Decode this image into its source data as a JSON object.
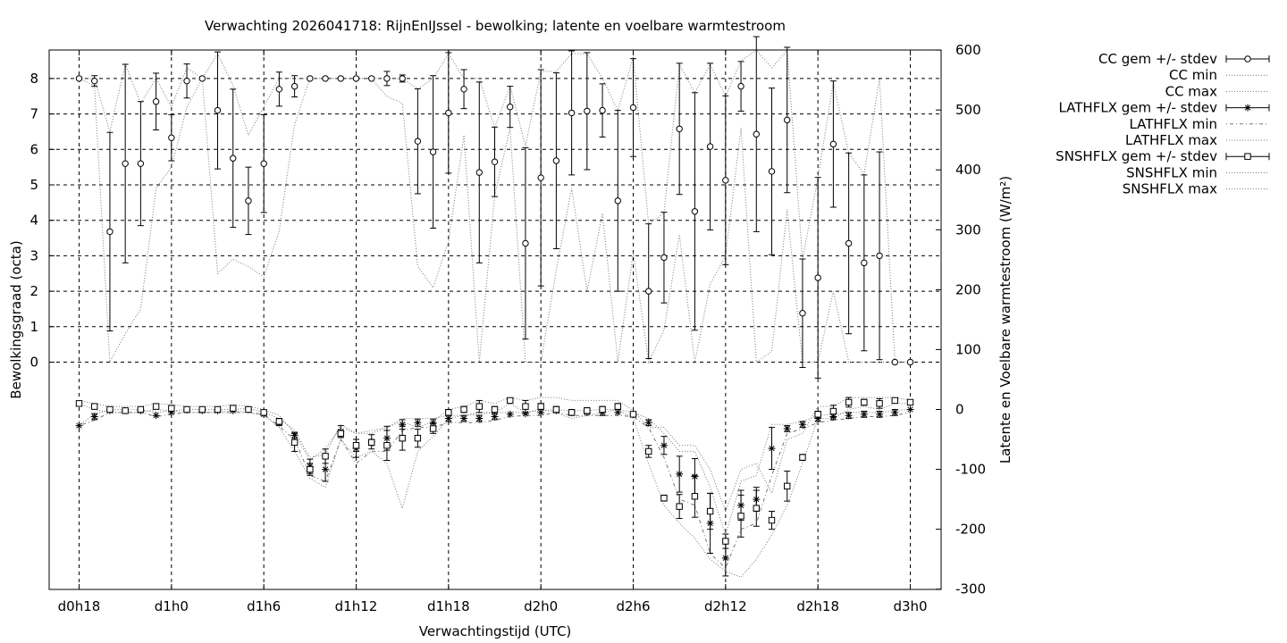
{
  "chart_data": {
    "type": "line",
    "title": "Verwachting 2026041718: RijnEnIJssel - bewolking; latente en voelbare warmtestroom",
    "xlabel": "Verwachtingstijd (UTC)",
    "ylabel": "Bewolkingsgraad (octa)",
    "y2label": "Latente en Voelbare warmtestroom (W/m²)",
    "x_tick_labels": [
      "d0h18",
      "d1h0",
      "d1h6",
      "d1h12",
      "d1h18",
      "d2h0",
      "d2h6",
      "d2h12",
      "d2h18",
      "d3h0"
    ],
    "x_tick_hours": [
      18,
      24,
      30,
      36,
      42,
      48,
      54,
      60,
      66,
      72
    ],
    "xlim": [
      16,
      74
    ],
    "y_ticks": [
      0,
      1,
      2,
      3,
      4,
      5,
      6,
      7,
      8
    ],
    "y2_ticks": [
      -300,
      -200,
      -100,
      0,
      100,
      200,
      300,
      400,
      500,
      600
    ],
    "y2lim": [
      -300,
      600
    ],
    "grid": true,
    "legend_position": "outside-right",
    "legend": [
      {
        "label": "CC gem +/- stdev",
        "style": "errorbar-circle"
      },
      {
        "label": "CC min",
        "style": "dotted"
      },
      {
        "label": "CC max",
        "style": "dotted"
      },
      {
        "label": "LATHFLX gem +/- stdev",
        "style": "errorbar-star"
      },
      {
        "label": "LATHFLX min",
        "style": "dashdot"
      },
      {
        "label": "LATHFLX max",
        "style": "dotted"
      },
      {
        "label": "SNSHFLX gem +/- stdev",
        "style": "errorbar-square"
      },
      {
        "label": "SNSHFLX min",
        "style": "dotted"
      },
      {
        "label": "SNSHFLX max",
        "style": "dotted"
      }
    ],
    "hours": [
      18,
      19,
      20,
      21,
      22,
      23,
      24,
      25,
      26,
      27,
      28,
      29,
      30,
      31,
      32,
      33,
      34,
      35,
      36,
      37,
      38,
      39,
      40,
      41,
      42,
      43,
      44,
      45,
      46,
      47,
      48,
      49,
      50,
      51,
      52,
      53,
      54,
      55,
      56,
      57,
      58,
      59,
      60,
      61,
      62,
      63,
      64,
      65,
      66,
      67,
      68,
      69,
      70,
      71,
      72
    ],
    "series": [
      {
        "name": "CC gem +/- stdev",
        "axis": "left",
        "marker": "circle",
        "mean": [
          8,
          7.93,
          3.68,
          5.6,
          5.6,
          7.35,
          6.33,
          7.93,
          8,
          7.1,
          5.75,
          4.55,
          5.6,
          7.7,
          7.78,
          8,
          8,
          8,
          8,
          8,
          8,
          8,
          6.23,
          5.93,
          7.03,
          7.7,
          5.35,
          5.65,
          7.2,
          3.35,
          5.2,
          5.68,
          7.03,
          7.08,
          7.1,
          4.55,
          7.18,
          2,
          2.95,
          6.58,
          4.25,
          6.08,
          5.13,
          7.78,
          6.43,
          5.38,
          6.83,
          1.38,
          2.38,
          6.15,
          3.35,
          2.8,
          3,
          0,
          0
        ],
        "stdev": [
          0,
          0.15,
          2.8,
          2.8,
          1.75,
          0.8,
          0.65,
          0.48,
          0,
          1.65,
          1.95,
          0.95,
          1.38,
          0.48,
          0.3,
          0,
          0,
          0,
          0,
          0,
          0.2,
          0.1,
          1.48,
          2.15,
          1.7,
          0.55,
          2.55,
          0.98,
          0.58,
          2.7,
          3.05,
          2.48,
          1.75,
          1.65,
          0.75,
          2.55,
          1.38,
          1.9,
          1.28,
          1.85,
          3.35,
          2.35,
          2.38,
          0.7,
          2.75,
          2.35,
          2.05,
          1.53,
          2.83,
          1.78,
          2.55,
          2.48,
          2.93,
          0,
          0
        ]
      },
      {
        "name": "LATHFLX gem +/- stdev",
        "axis": "right",
        "marker": "star",
        "mean": [
          -27,
          -12,
          -2,
          -2,
          -2,
          -10,
          -5,
          -1,
          -2,
          -2,
          -2,
          0,
          -8,
          -22,
          -43,
          -95,
          -100,
          -37,
          -65,
          -54,
          -48,
          -25,
          -22,
          -22,
          -15,
          -15,
          -15,
          -12,
          -8,
          -7,
          -5,
          -2,
          -5,
          -5,
          -5,
          -5,
          -8,
          -22,
          -60,
          -108,
          -112,
          -190,
          -248,
          -160,
          -150,
          -65,
          -32,
          -25,
          -15,
          -12,
          -10,
          -8,
          -8,
          -5,
          0
        ],
        "stdev": [
          0,
          5,
          0,
          0,
          0,
          0,
          0,
          0,
          0,
          0,
          0,
          0,
          0,
          5,
          5,
          12,
          20,
          10,
          15,
          12,
          20,
          8,
          6,
          6,
          5,
          5,
          5,
          5,
          0,
          0,
          0,
          0,
          0,
          0,
          5,
          0,
          0,
          5,
          15,
          30,
          30,
          50,
          30,
          25,
          20,
          35,
          5,
          5,
          5,
          5,
          5,
          5,
          5,
          5,
          0
        ]
      },
      {
        "name": "SNSHFLX gem +/- stdev",
        "axis": "right",
        "marker": "square",
        "mean": [
          10,
          5,
          0,
          -2,
          0,
          5,
          2,
          0,
          0,
          0,
          2,
          0,
          -5,
          -20,
          -55,
          -100,
          -78,
          -40,
          -60,
          -55,
          -60,
          -48,
          -48,
          -32,
          -5,
          0,
          5,
          0,
          15,
          5,
          5,
          0,
          -5,
          -2,
          0,
          5,
          -8,
          -70,
          -148,
          -162,
          -145,
          -170,
          -220,
          -178,
          -165,
          -185,
          -128,
          -80,
          -8,
          -3,
          12,
          12,
          10,
          15,
          12
        ],
        "stdev": [
          0,
          0,
          0,
          0,
          0,
          0,
          0,
          0,
          0,
          0,
          0,
          0,
          0,
          5,
          15,
          10,
          12,
          5,
          10,
          5,
          25,
          20,
          15,
          8,
          5,
          5,
          10,
          5,
          0,
          10,
          5,
          5,
          5,
          5,
          5,
          5,
          0,
          10,
          5,
          20,
          35,
          30,
          12,
          35,
          30,
          15,
          25,
          5,
          5,
          10,
          8,
          5,
          8,
          0,
          0
        ]
      },
      {
        "name": "CC min",
        "axis": "left",
        "style": "dotted",
        "values": [
          8,
          7.8,
          0,
          0.8,
          1.5,
          4.9,
          5.5,
          7.2,
          8,
          2.5,
          2.9,
          2.7,
          2.4,
          3.7,
          6.7,
          8,
          8,
          8,
          8,
          8,
          7.5,
          7.3,
          2.7,
          2.1,
          3.4,
          6.4,
          0,
          4.7,
          6.6,
          0,
          0,
          2.6,
          4.9,
          2,
          4.2,
          0,
          3.1,
          0,
          0.9,
          3.6,
          0,
          2.2,
          3,
          6.6,
          0,
          0.3,
          4.3,
          0,
          0,
          2,
          0,
          0,
          0,
          0,
          0
        ]
      },
      {
        "name": "CC max",
        "axis": "left",
        "style": "dotted",
        "values": [
          8,
          8,
          6.5,
          8.4,
          7.3,
          8,
          7.2,
          8.3,
          8,
          8.7,
          7.8,
          6.4,
          7.2,
          8,
          8,
          8,
          8,
          8,
          8,
          8,
          8,
          8,
          7.7,
          8,
          8.7,
          8,
          8,
          6.6,
          7.8,
          6.1,
          8.2,
          8.2,
          8.7,
          8.7,
          8,
          7.1,
          8.6,
          3.9,
          4.2,
          8.4,
          7.6,
          8.4,
          7.5,
          8.5,
          8.8,
          8.3,
          8.8,
          2.9,
          5.2,
          7.9,
          5.9,
          5.3,
          8,
          0,
          0
        ]
      },
      {
        "name": "LATHFLX min",
        "axis": "right",
        "style": "dashdot",
        "values": [
          -27,
          -18,
          -5,
          -5,
          -5,
          -12,
          -8,
          -5,
          -5,
          -5,
          -5,
          -5,
          -8,
          -28,
          -50,
          -110,
          -120,
          -50,
          -90,
          -70,
          -70,
          -35,
          -30,
          -30,
          -22,
          -22,
          -22,
          -18,
          -12,
          -10,
          -10,
          -5,
          -10,
          -10,
          -10,
          -10,
          -12,
          -30,
          -80,
          -150,
          -160,
          -240,
          -265,
          -200,
          -190,
          -110,
          -40,
          -32,
          -22,
          -18,
          -15,
          -12,
          -12,
          -10,
          -5
        ]
      },
      {
        "name": "LATHFLX max",
        "axis": "right",
        "style": "dotted",
        "values": [
          -27,
          -8,
          0,
          0,
          0,
          -5,
          -2,
          0,
          0,
          0,
          0,
          2,
          -5,
          -15,
          -35,
          -80,
          -75,
          -25,
          -40,
          -40,
          -30,
          -15,
          -15,
          -15,
          -10,
          -10,
          -8,
          -5,
          -5,
          -5,
          -2,
          0,
          -2,
          -2,
          0,
          0,
          -5,
          -15,
          -40,
          -70,
          -70,
          -130,
          -210,
          -120,
          -110,
          -25,
          -25,
          -20,
          -10,
          -8,
          -5,
          -5,
          -5,
          -2,
          0
        ]
      },
      {
        "name": "SNSHFLX min",
        "axis": "right",
        "style": "dotted",
        "values": [
          10,
          0,
          -5,
          -5,
          -5,
          0,
          -2,
          -5,
          -5,
          -5,
          -2,
          -5,
          -10,
          -30,
          -70,
          -115,
          -130,
          -50,
          -80,
          -70,
          -90,
          -165,
          -70,
          -45,
          -15,
          -10,
          -5,
          -5,
          10,
          -5,
          0,
          -5,
          -15,
          -10,
          -5,
          0,
          -15,
          -90,
          -160,
          -190,
          -215,
          -250,
          -270,
          -280,
          -250,
          -210,
          -160,
          -90,
          -15,
          -15,
          0,
          5,
          0,
          10,
          10
        ]
      },
      {
        "name": "SNSHFLX max",
        "axis": "right",
        "style": "dotted",
        "values": [
          15,
          10,
          5,
          5,
          5,
          10,
          8,
          5,
          5,
          5,
          8,
          5,
          0,
          -10,
          -40,
          -85,
          -65,
          -30,
          -40,
          -35,
          -30,
          -20,
          -30,
          -20,
          0,
          5,
          15,
          10,
          20,
          15,
          20,
          20,
          15,
          15,
          15,
          15,
          -2,
          -30,
          -30,
          -60,
          -60,
          -100,
          -170,
          -100,
          -90,
          -140,
          -50,
          -40,
          5,
          5,
          20,
          20,
          20,
          20,
          15
        ]
      }
    ]
  }
}
